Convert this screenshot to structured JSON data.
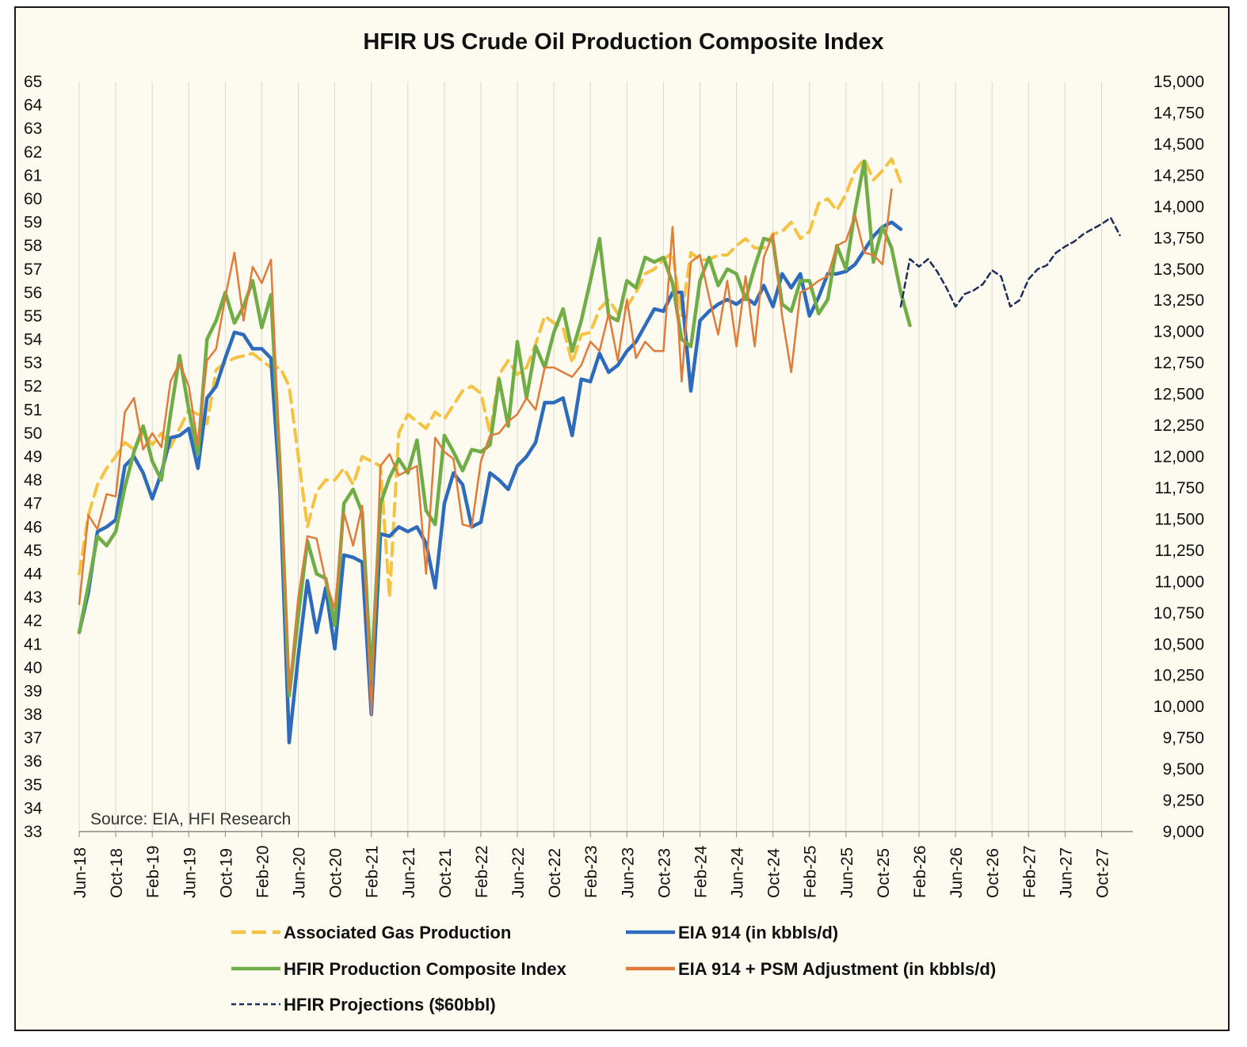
{
  "chart_data": {
    "type": "line",
    "title": "HFIR US Crude Oil Production Composite Index",
    "source_note": "Source: EIA, HFI Research",
    "left_axis": {
      "ylim": [
        33,
        65
      ],
      "ticks": [
        "33",
        "34",
        "35",
        "36",
        "37",
        "38",
        "39",
        "40",
        "41",
        "42",
        "43",
        "44",
        "45",
        "46",
        "47",
        "48",
        "49",
        "50",
        "51",
        "52",
        "53",
        "54",
        "55",
        "56",
        "57",
        "58",
        "59",
        "60",
        "61",
        "62",
        "63",
        "64",
        "65"
      ]
    },
    "right_axis": {
      "ylim": [
        9000,
        15000
      ],
      "ticks": [
        "9,000",
        "9,250",
        "9,500",
        "9,750",
        "10,000",
        "10,250",
        "10,500",
        "10,750",
        "11,000",
        "11,250",
        "11,500",
        "11,750",
        "12,000",
        "12,250",
        "12,500",
        "12,750",
        "13,000",
        "13,250",
        "13,500",
        "13,750",
        "14,000",
        "14,250",
        "14,500",
        "14,750",
        "15,000"
      ]
    },
    "x_axis": {
      "start": "Jun-18",
      "months": 115,
      "tick_labels": [
        "Jun-18",
        "Oct-18",
        "Feb-19",
        "Jun-19",
        "Oct-19",
        "Feb-20",
        "Jun-20",
        "Oct-20",
        "Feb-21",
        "Jun-21",
        "Oct-21",
        "Feb-22",
        "Jun-22",
        "Oct-22",
        "Feb-23",
        "Jun-23",
        "Oct-23",
        "Feb-24",
        "Jun-24",
        "Oct-24",
        "Feb-25",
        "Jun-25",
        "Oct-25",
        "Feb-26",
        "Jun-26",
        "Oct-26",
        "Feb-27",
        "Jun-27",
        "Oct-27"
      ]
    },
    "series": [
      {
        "name": "Associated Gas Production",
        "axis": "left",
        "color": "#f5c242",
        "dash": "dashed",
        "width": 4,
        "start_index": 0,
        "values": [
          44.0,
          46.5,
          47.8,
          48.5,
          49.0,
          49.6,
          49.3,
          50.0,
          49.5,
          50.0,
          49.4,
          50.2,
          51.0,
          50.8,
          50.4,
          52.7,
          53.0,
          53.2,
          53.3,
          53.4,
          53.1,
          52.8,
          52.8,
          52.0,
          49.0,
          46.0,
          47.5,
          48.0,
          48.0,
          48.5,
          47.8,
          49.0,
          48.8,
          48.6,
          43.0,
          50.0,
          50.8,
          50.5,
          50.2,
          50.9,
          50.6,
          51.2,
          51.8,
          52.0,
          51.7,
          50.0,
          52.5,
          53.1,
          52.5,
          52.8,
          53.8,
          55.0,
          54.7,
          54.5,
          53.0,
          54.2,
          54.3,
          55.3,
          55.7,
          55.1,
          55.4,
          56.0,
          56.8,
          57.0,
          57.4,
          57.7,
          55.0,
          57.7,
          57.4,
          57.4,
          57.6,
          57.6,
          58.0,
          58.3,
          57.9,
          57.9,
          58.5,
          58.6,
          59.0,
          58.3,
          58.6,
          59.8,
          60.0,
          59.5,
          60.2,
          61.2,
          61.7,
          60.8,
          61.2,
          61.7,
          60.7
        ]
      },
      {
        "name": "EIA 914 (in kbbls/d)",
        "axis": "left",
        "color": "#2e6bbd",
        "dash": "solid",
        "width": 4.5,
        "start_index": 0,
        "values": [
          41.5,
          43.2,
          45.8,
          46.0,
          46.3,
          48.6,
          49.0,
          48.3,
          47.2,
          48.3,
          49.8,
          49.9,
          50.2,
          48.5,
          51.5,
          52.0,
          53.2,
          54.3,
          54.2,
          53.6,
          53.6,
          53.2,
          47.5,
          36.8,
          40.5,
          43.7,
          41.5,
          43.4,
          40.8,
          44.8,
          44.7,
          44.5,
          38.0,
          45.7,
          45.6,
          46.0,
          45.8,
          46.0,
          45.3,
          43.4,
          47.0,
          48.3,
          47.8,
          46.0,
          46.2,
          48.3,
          48.0,
          47.6,
          48.6,
          49.0,
          49.6,
          51.3,
          51.3,
          51.5,
          49.9,
          52.3,
          52.2,
          53.4,
          52.6,
          52.9,
          53.5,
          53.9,
          54.6,
          55.3,
          55.2,
          56.0,
          56.0,
          51.8,
          54.8,
          55.2,
          55.5,
          55.7,
          55.5,
          55.8,
          55.5,
          56.3,
          55.4,
          56.8,
          56.2,
          56.8,
          55.0,
          55.8,
          56.8,
          56.8,
          56.9,
          57.2,
          57.8,
          58.4,
          58.8,
          59.0,
          58.7
        ]
      },
      {
        "name": "HFIR Production Composite Index",
        "axis": "left",
        "color": "#70ad47",
        "dash": "solid",
        "width": 4.5,
        "start_index": 0,
        "values": [
          41.5,
          43.5,
          45.6,
          45.2,
          45.8,
          47.7,
          49.2,
          50.3,
          48.8,
          48.0,
          50.8,
          53.3,
          51.0,
          49.1,
          54.0,
          54.8,
          56.0,
          54.7,
          55.4,
          56.5,
          54.5,
          55.9,
          48.5,
          38.8,
          42.2,
          45.4,
          44.0,
          43.8,
          41.8,
          47.0,
          47.6,
          46.6,
          39.5,
          47.0,
          48.1,
          48.9,
          48.3,
          49.7,
          46.7,
          46.1,
          49.9,
          49.2,
          48.4,
          49.3,
          49.2,
          49.5,
          52.3,
          50.3,
          53.9,
          51.5,
          53.7,
          52.8,
          54.3,
          55.3,
          53.5,
          54.8,
          56.5,
          58.3,
          55.0,
          54.8,
          56.5,
          56.2,
          57.5,
          57.3,
          57.5,
          56.4,
          54.0,
          53.7,
          56.5,
          57.5,
          56.3,
          57.0,
          56.8,
          55.7,
          57.1,
          58.3,
          58.2,
          55.5,
          55.2,
          56.5,
          56.5,
          55.1,
          55.7,
          58.0,
          57.0,
          59.5,
          61.6,
          57.3,
          58.8,
          57.9,
          56.0,
          54.6
        ]
      },
      {
        "name": "EIA 914 + PSM Adjustment (in kbbls/d)",
        "axis": "left",
        "color": "#e07b39",
        "dash": "solid",
        "width": 2.5,
        "start_index": 0,
        "values": [
          42.7,
          46.5,
          45.9,
          47.4,
          47.3,
          50.9,
          51.5,
          49.3,
          50.0,
          49.4,
          52.2,
          53.0,
          52.0,
          49.5,
          53.1,
          53.6,
          55.8,
          57.7,
          54.8,
          57.1,
          56.4,
          57.4,
          48.5,
          39.0,
          43.0,
          45.6,
          45.5,
          43.7,
          42.5,
          46.6,
          45.2,
          46.9,
          38.0,
          48.6,
          49.1,
          48.2,
          48.4,
          48.6,
          44.0,
          49.8,
          49.2,
          48.9,
          46.1,
          46.0,
          48.8,
          49.9,
          50.0,
          50.5,
          50.8,
          51.5,
          51.0,
          52.8,
          52.8,
          52.6,
          52.4,
          52.9,
          53.9,
          53.5,
          55.1,
          53.1,
          55.7,
          53.2,
          53.9,
          53.5,
          53.5,
          58.8,
          52.2,
          57.3,
          57.6,
          55.8,
          54.2,
          56.5,
          53.7,
          56.7,
          53.7,
          57.5,
          58.5,
          55.0,
          52.6,
          56.0,
          56.2,
          56.5,
          56.7,
          58.0,
          58.2,
          59.3,
          57.7,
          57.6,
          57.2,
          60.4
        ]
      },
      {
        "name": "HFIR Projections ($60bbl)",
        "axis": "right",
        "color": "#1f2d5c",
        "dash": "dotted-dash",
        "width": 2.5,
        "start_index": 90,
        "values": [
          13200,
          13580,
          13520,
          13580,
          13480,
          13350,
          13200,
          13300,
          13330,
          13380,
          13490,
          13440,
          13200,
          13250,
          13420,
          13500,
          13530,
          13630,
          13680,
          13720,
          13780,
          13820,
          13860,
          13910,
          13770
        ]
      }
    ],
    "legend": {
      "placement": "bottom",
      "entries": [
        {
          "label": "Associated Gas Production",
          "color": "#f5c242",
          "dash": "dashed"
        },
        {
          "label": "EIA 914 (in kbbls/d)",
          "color": "#2e6bbd",
          "dash": "solid"
        },
        {
          "label": "HFIR Production Composite Index",
          "color": "#70ad47",
          "dash": "solid"
        },
        {
          "label": "EIA 914 + PSM Adjustment (in kbbls/d)",
          "color": "#e07b39",
          "dash": "solid"
        },
        {
          "label": "HFIR Projections ($60bbl)",
          "color": "#1f2d5c",
          "dash": "dotted-dash"
        }
      ]
    },
    "gridlines": "vertical-only"
  }
}
